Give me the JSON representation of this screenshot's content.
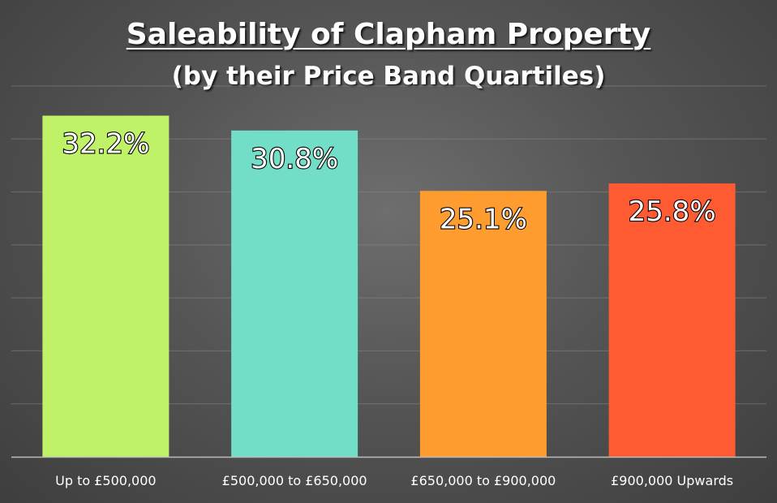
{
  "chart_data": {
    "type": "bar",
    "title": "Saleability of Clapham Property",
    "subtitle": "(by their Price Band Quartiles)",
    "categories": [
      "Up to £500,000",
      "£500,000 to £650,000",
      "£650,000 to £900,000",
      "£900,000 Upwards"
    ],
    "values": [
      32.2,
      30.8,
      25.1,
      25.8
    ],
    "data_labels": [
      "32.2%",
      "30.8%",
      "25.1%",
      "25.8%"
    ],
    "colors": [
      "#bff266",
      "#72dec7",
      "#fe9c30",
      "#ff5b33"
    ],
    "xlabel": "",
    "ylabel": "",
    "ylim": [
      0,
      35
    ],
    "grid": true,
    "gridline_step": 5,
    "legend": "none",
    "background": "#555555"
  }
}
